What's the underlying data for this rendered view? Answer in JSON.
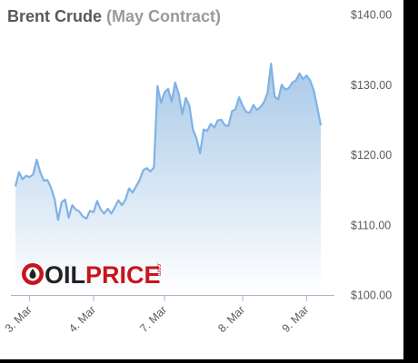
{
  "header": {
    "title": "Brent Crude",
    "subtitle": "(May Contract)"
  },
  "logo": {
    "text": "OILPRICE",
    "suffix": ".com"
  },
  "colors": {
    "line": "#7fb2e5",
    "area_top": "#a9c9e8",
    "area_bottom": "#ffffff",
    "axis": "#a9b6c8",
    "logo_red": "#c8141c",
    "logo_dark": "#222222"
  },
  "chart_data": {
    "type": "area",
    "title": "Brent Crude (May Contract)",
    "ylim": [
      100,
      140
    ],
    "y_ticks": [
      100,
      110,
      120,
      130,
      140
    ],
    "y_tick_labels": [
      "$100.00",
      "$110.00",
      "$120.00",
      "$130.00",
      "$140.00"
    ],
    "y_axis_position": "right",
    "x_tick_labels": [
      "3. Mar",
      "4. Mar",
      "7. Mar",
      "8. Mar",
      "9. Mar"
    ],
    "x_tick_index": [
      4,
      22,
      42,
      64,
      82
    ],
    "grid": false,
    "legend": "none",
    "series": [
      {
        "values": [
          115.5,
          117.5,
          116.5,
          117.0,
          116.8,
          117.2,
          119.3,
          117.5,
          116.3,
          116.4,
          115.3,
          113.7,
          110.7,
          113.2,
          113.6,
          111.0,
          112.8,
          112.2,
          111.9,
          111.2,
          110.9,
          112.0,
          111.8,
          113.4,
          112.2,
          111.6,
          112.3,
          111.6,
          112.5,
          113.5,
          112.8,
          113.6,
          115.2,
          114.6,
          115.5,
          116.4,
          117.8,
          118.1,
          117.6,
          118.2,
          129.8,
          127.4,
          128.9,
          129.4,
          127.6,
          130.3,
          128.7,
          125.8,
          128.1,
          127.0,
          123.6,
          122.3,
          120.2,
          123.6,
          123.4,
          124.4,
          123.9,
          124.9,
          125.0,
          124.2,
          124.1,
          126.2,
          126.5,
          128.2,
          127.0,
          126.1,
          126.0,
          127.1,
          126.4,
          126.8,
          127.5,
          128.8,
          133.0,
          128.3,
          127.9,
          130.0,
          129.3,
          129.5,
          130.3,
          130.6,
          131.6,
          130.8,
          131.3,
          130.6,
          129.2,
          126.8,
          124.2
        ]
      }
    ]
  }
}
